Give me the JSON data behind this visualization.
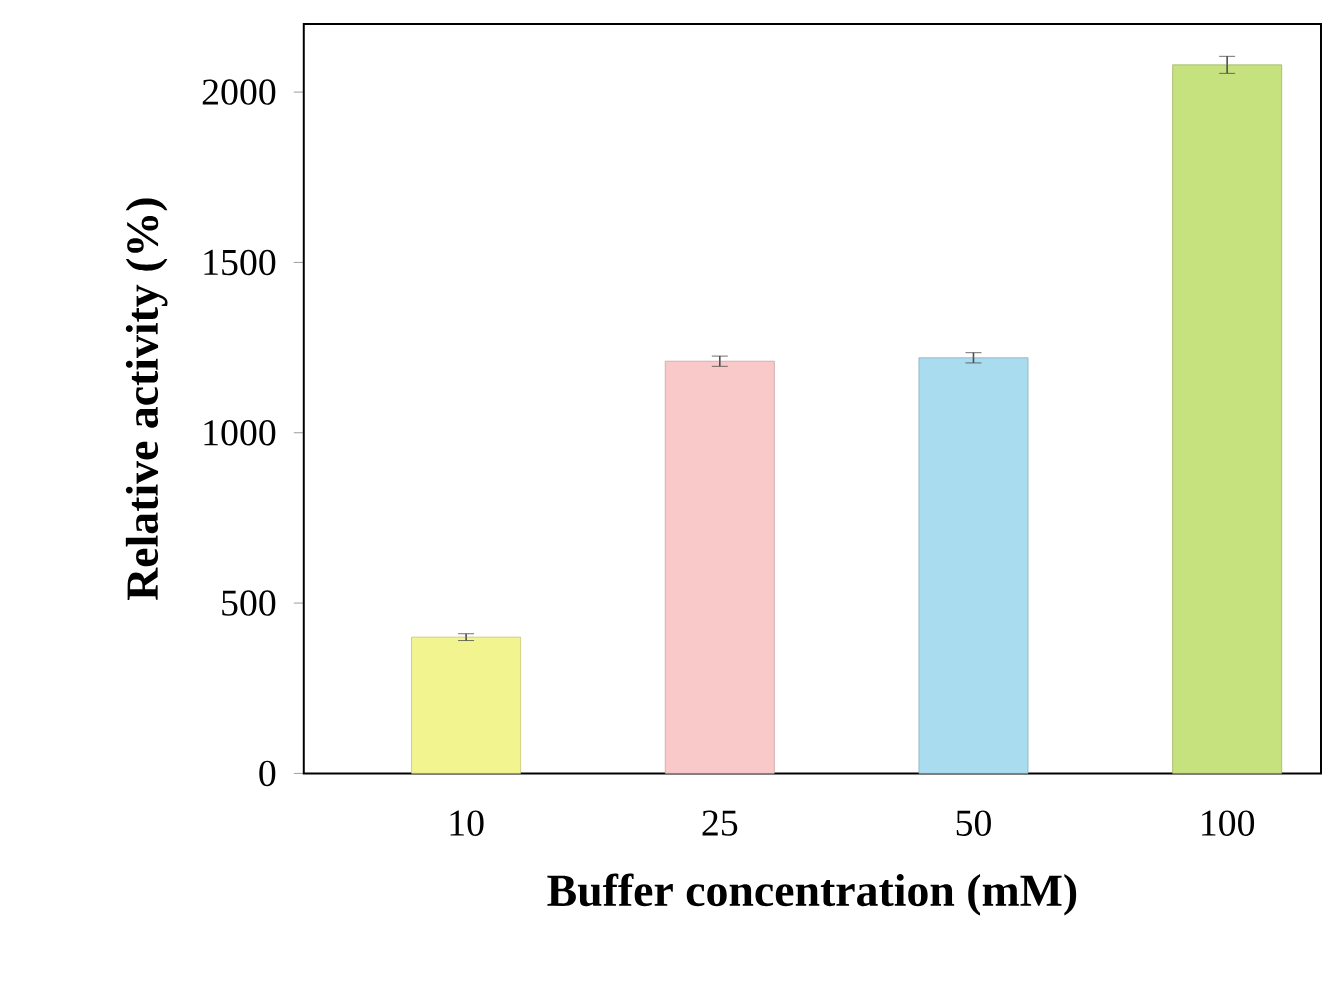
{
  "chart_data": {
    "type": "bar",
    "xlabel": "Buffer concentration (mM)",
    "ylabel": "Relative activity (%)",
    "categories": [
      "10",
      "25",
      "50",
      "100"
    ],
    "values": [
      400,
      1210,
      1220,
      2080
    ],
    "errors": [
      10,
      15,
      15,
      25
    ],
    "colors": [
      "#f2f58f",
      "#f9c9c9",
      "#aadcf0",
      "#c6e27e"
    ],
    "ylim": [
      0,
      2200
    ],
    "yticks": [
      0,
      500,
      1000,
      1500,
      2000
    ],
    "grid": false
  }
}
